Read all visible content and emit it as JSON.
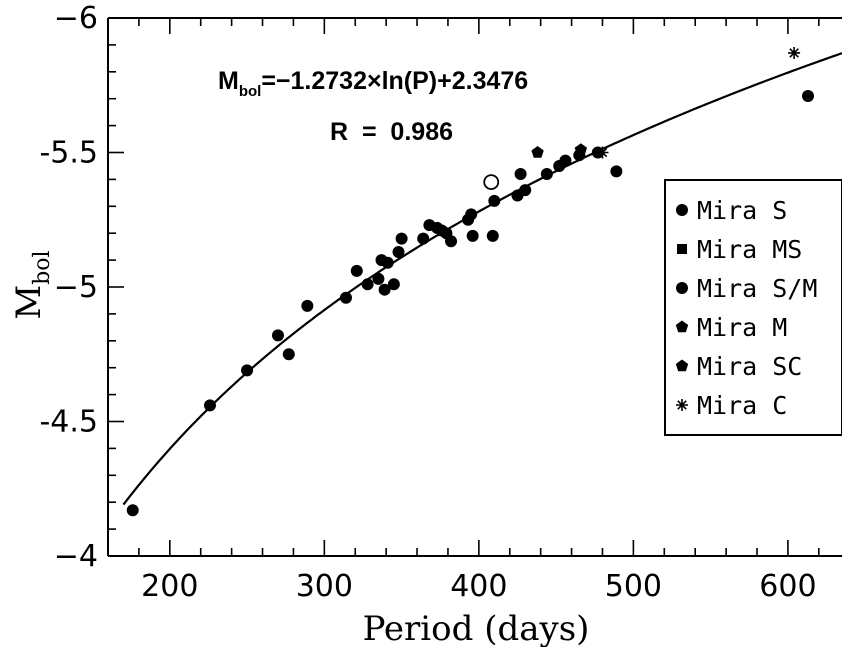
{
  "chart_data": {
    "type": "scatter",
    "xlabel": "Period (days)",
    "ylabel": "M",
    "ylabel_sub": "bol",
    "xlim": [
      160,
      635
    ],
    "ylim": [
      -4,
      -6
    ],
    "x_ticks": [
      200,
      300,
      400,
      500,
      600
    ],
    "y_ticks": [
      -4,
      -4.5,
      -5,
      -5.5,
      -6
    ],
    "y_tick_labels": [
      "−4",
      "-4.5",
      "−5",
      "-5.5",
      "−6"
    ],
    "grid": false,
    "legend_position": "right",
    "annotations": {
      "equation_main": "M",
      "equation_sub": "bol",
      "equation_rest": "=−1.2732×ln(P)+2.3476",
      "r_value": "R  =  0.986"
    },
    "fit_curve": {
      "a": -1.2732,
      "b": 2.3476,
      "x_from": 170,
      "x_to": 635
    },
    "legend": [
      {
        "label": "Mira S",
        "marker": "circle"
      },
      {
        "label": "Mira MS",
        "marker": "square"
      },
      {
        "label": "Mira S/M",
        "marker": "circle"
      },
      {
        "label": "Mira M",
        "marker": "pentagon"
      },
      {
        "label": "Mira SC",
        "marker": "pentagon"
      },
      {
        "label": "Mira C",
        "marker": "star"
      }
    ],
    "series": [
      {
        "name": "Mira S",
        "marker": "circle",
        "points": [
          [
            176,
            -4.17
          ],
          [
            226,
            -4.56
          ],
          [
            250,
            -4.69
          ],
          [
            270,
            -4.82
          ],
          [
            277,
            -4.75
          ],
          [
            289,
            -4.93
          ],
          [
            314,
            -4.96
          ],
          [
            321,
            -5.06
          ],
          [
            328,
            -5.01
          ],
          [
            335,
            -5.03
          ],
          [
            337,
            -5.1
          ],
          [
            339,
            -4.99
          ],
          [
            341,
            -5.09
          ],
          [
            345,
            -5.01
          ],
          [
            348,
            -5.13
          ],
          [
            350,
            -5.18
          ],
          [
            364,
            -5.18
          ],
          [
            368,
            -5.23
          ],
          [
            373,
            -5.22
          ],
          [
            376,
            -5.21
          ],
          [
            379,
            -5.2
          ],
          [
            382,
            -5.17
          ],
          [
            393,
            -5.25
          ],
          [
            395,
            -5.27
          ],
          [
            396,
            -5.19
          ],
          [
            409,
            -5.19
          ],
          [
            410,
            -5.32
          ],
          [
            425,
            -5.34
          ],
          [
            427,
            -5.42
          ],
          [
            430,
            -5.36
          ],
          [
            444,
            -5.42
          ],
          [
            452,
            -5.45
          ],
          [
            456,
            -5.47
          ],
          [
            465,
            -5.49
          ],
          [
            477,
            -5.5
          ],
          [
            489,
            -5.43
          ],
          [
            613,
            -5.71
          ]
        ]
      },
      {
        "name": "Mira S/M",
        "marker": "open-circle",
        "points": [
          [
            408,
            -5.39
          ]
        ]
      },
      {
        "name": "Mira M",
        "marker": "pentagon",
        "points": [
          [
            438,
            -5.5
          ],
          [
            466,
            -5.51
          ]
        ]
      },
      {
        "name": "Mira C",
        "marker": "star",
        "points": [
          [
            480,
            -5.5
          ],
          [
            604,
            -5.87
          ]
        ]
      }
    ]
  }
}
